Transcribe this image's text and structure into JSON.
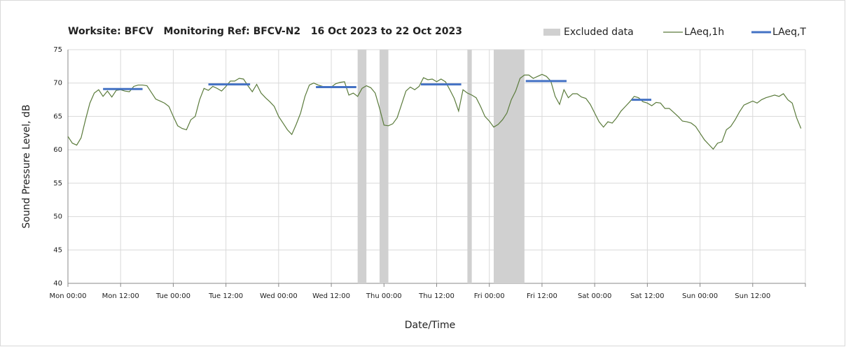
{
  "chart_data": {
    "type": "line",
    "title": "Worksite: BFCV   Monitoring Ref: BFCV-N2   16 Oct 2023 to 22 Oct 2023",
    "xlabel": "Date/Time",
    "ylabel": "Sound Pressure Level, dB",
    "xlim": [
      0,
      168
    ],
    "ylim": [
      40,
      75
    ],
    "xticks": [
      {
        "value": 0,
        "label": "Mon 00:00"
      },
      {
        "value": 12,
        "label": "Mon 12:00"
      },
      {
        "value": 24,
        "label": "Tue 00:00"
      },
      {
        "value": 36,
        "label": "Tue 12:00"
      },
      {
        "value": 48,
        "label": "Wed 00:00"
      },
      {
        "value": 60,
        "label": "Wed 12:00"
      },
      {
        "value": 72,
        "label": "Thu 00:00"
      },
      {
        "value": 84,
        "label": "Thu 12:00"
      },
      {
        "value": 96,
        "label": "Fri 00:00"
      },
      {
        "value": 108,
        "label": "Fri 12:00"
      },
      {
        "value": 120,
        "label": "Sat 00:00"
      },
      {
        "value": 132,
        "label": "Sat 12:00"
      },
      {
        "value": 144,
        "label": "Sun 00:00"
      },
      {
        "value": 156,
        "label": "Sun 12:00"
      },
      168
    ],
    "yticks": [
      40,
      45,
      50,
      55,
      60,
      65,
      70,
      75
    ],
    "grid": true,
    "legend": "top-right",
    "excluded_name": "Excluded data",
    "excluded_color": "#d0d0d0",
    "excluded": [
      [
        66,
        68
      ],
      [
        71,
        73
      ],
      [
        91,
        92
      ],
      [
        97,
        104
      ]
    ],
    "x": [
      0,
      1,
      2,
      3,
      4,
      5,
      6,
      7,
      8,
      9,
      10,
      11,
      12,
      13,
      14,
      15,
      16,
      17,
      18,
      19,
      20,
      21,
      22,
      23,
      24,
      25,
      26,
      27,
      28,
      29,
      30,
      31,
      32,
      33,
      34,
      35,
      36,
      37,
      38,
      39,
      40,
      41,
      42,
      43,
      44,
      45,
      46,
      47,
      48,
      49,
      50,
      51,
      52,
      53,
      54,
      55,
      56,
      57,
      58,
      59,
      60,
      61,
      62,
      63,
      64,
      65,
      66,
      67,
      68,
      69,
      70,
      71,
      72,
      73,
      74,
      75,
      76,
      77,
      78,
      79,
      80,
      81,
      82,
      83,
      84,
      85,
      86,
      87,
      88,
      89,
      90,
      91,
      92,
      93,
      94,
      95,
      96,
      97,
      98,
      99,
      100,
      101,
      102,
      103,
      104,
      105,
      106,
      107,
      108,
      109,
      110,
      111,
      112,
      113,
      114,
      115,
      116,
      117,
      118,
      119,
      120,
      121,
      122,
      123,
      124,
      125,
      126,
      127,
      128,
      129,
      130,
      131,
      132,
      133,
      134,
      135,
      136,
      137,
      138,
      139,
      140,
      141,
      142,
      143,
      144,
      145,
      146,
      147,
      148,
      149,
      150,
      151,
      152,
      153,
      154,
      155,
      156,
      157,
      158,
      159,
      160,
      161,
      162,
      163,
      164,
      165,
      166,
      167
    ],
    "series": [
      {
        "name": "LAeq,1h",
        "color": "#5b7b3c",
        "values": [
          62,
          61,
          60.7,
          61.8,
          64.5,
          67,
          68.5,
          69,
          68,
          68.8,
          67.9,
          68.9,
          69,
          68.8,
          68.7,
          69.5,
          69.7,
          69.7,
          69.6,
          68.6,
          67.6,
          67.3,
          67,
          66.5,
          65,
          63.6,
          63.2,
          63,
          64.5,
          65,
          67.5,
          69.2,
          68.9,
          69.5,
          69.2,
          68.8,
          69.5,
          70.3,
          70.3,
          70.7,
          70.6,
          69.6,
          68.7,
          69.8,
          68.5,
          67.8,
          67.2,
          66.5,
          65,
          64,
          63,
          62.3,
          63.8,
          65.5,
          68,
          69.7,
          70,
          69.7,
          69.5,
          69.3,
          69.4,
          69.9,
          70.1,
          70.2,
          68.2,
          68.5,
          68,
          69.2,
          69.6,
          69.3,
          68.5,
          66.2,
          63.7,
          63.6,
          63.9,
          64.8,
          66.8,
          68.8,
          69.4,
          69,
          69.5,
          70.8,
          70.5,
          70.6,
          70.2,
          70.6,
          70.2,
          69,
          67.7,
          65.8,
          69,
          68.5,
          68.2,
          67.8,
          66.5,
          65,
          64.3,
          63.4,
          63.8,
          64.5,
          65.5,
          67.5,
          68.8,
          70.7,
          71.2,
          71.2,
          70.7,
          71,
          71.3,
          71,
          70.3,
          68,
          66.8,
          69,
          67.8,
          68.4,
          68.4,
          67.9,
          67.7,
          66.8,
          65.5,
          64.2,
          63.4,
          64.2,
          64,
          64.8,
          65.8,
          66.5,
          67.2,
          68,
          67.8,
          67.2,
          67,
          66.6,
          67.1,
          67,
          66.2,
          66.2,
          65.6,
          65,
          64.3,
          64.2,
          64,
          63.5,
          62.5,
          61.5,
          60.8,
          60.1,
          61,
          61.2,
          63,
          63.5,
          64.5,
          65.7,
          66.7,
          67,
          67.3,
          67,
          67.5,
          67.8,
          68,
          68.2,
          68,
          68.4,
          67.5,
          67,
          64.8,
          63.2
        ]
      },
      {
        "name": "LAeq,T",
        "color": "#4472c4",
        "segments": [
          {
            "start": 8,
            "end": 17,
            "value": 69.1
          },
          {
            "start": 32,
            "end": 41.5,
            "value": 69.8
          },
          {
            "start": 56.5,
            "end": 65.7,
            "value": 69.4
          },
          {
            "start": 80.4,
            "end": 89.6,
            "value": 69.8
          },
          {
            "start": 104.3,
            "end": 113.6,
            "value": 70.3
          },
          {
            "start": 128.4,
            "end": 132.9,
            "value": 67.5
          }
        ]
      }
    ]
  }
}
